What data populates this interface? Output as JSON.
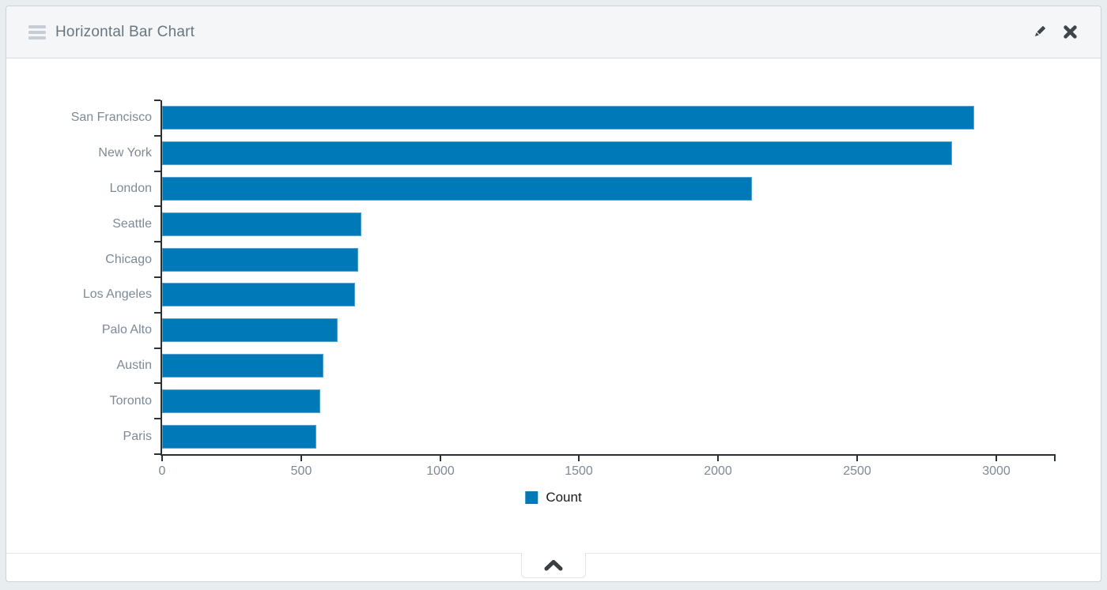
{
  "panel": {
    "title": "Horizontal Bar Chart",
    "icons": {
      "drag_handle": "hamburger",
      "edit": "pencil",
      "close": "x-cross",
      "collapse": "chevron-up"
    }
  },
  "chart_data": {
    "type": "bar",
    "orientation": "horizontal",
    "title": "",
    "categories": [
      "San Francisco",
      "New York",
      "London",
      "Seattle",
      "Chicago",
      "Los Angeles",
      "Palo Alto",
      "Austin",
      "Toronto",
      "Paris"
    ],
    "series": [
      {
        "name": "Count",
        "values": [
          2920,
          2840,
          2123,
          718,
          704,
          695,
          632,
          581,
          568,
          556
        ]
      }
    ],
    "xlabel": "",
    "ylabel": "",
    "xlim": [
      0,
      3214
    ],
    "xticks": [
      0,
      500,
      1000,
      1500,
      2000,
      2500,
      3000
    ],
    "grid": false,
    "bar_color": "#0079b8",
    "bar_border_color": "#5ba3cf",
    "axis_color": "#2c3136",
    "label_color": "#7d8a96",
    "legend": {
      "position": "bottom",
      "entries": [
        {
          "label": "Count",
          "color": "#0079b8"
        }
      ]
    }
  }
}
